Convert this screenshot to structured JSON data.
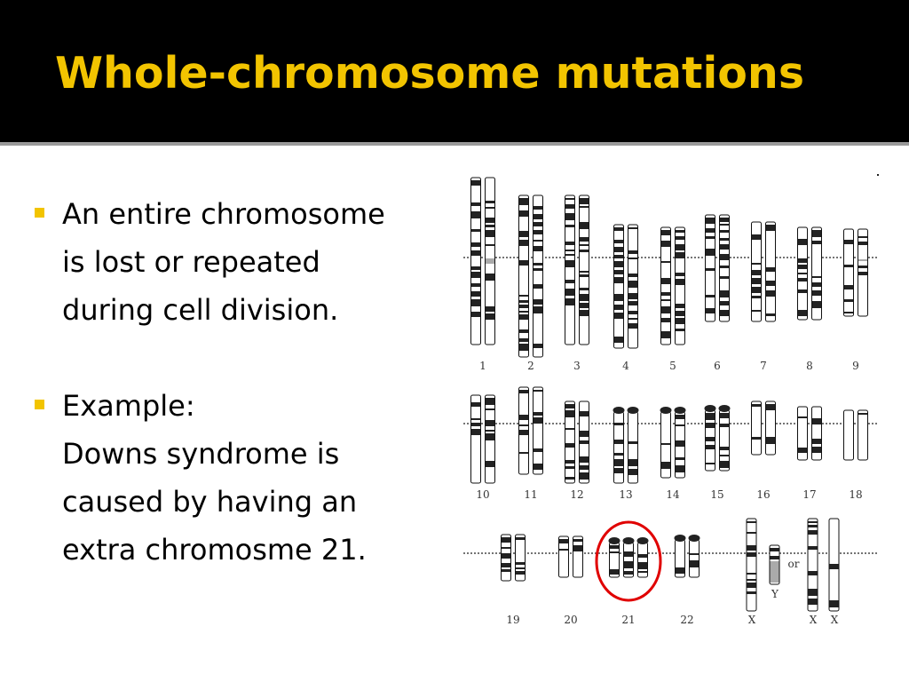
{
  "slide": {
    "title": "Whole-chromosome mutations",
    "bullets": [
      {
        "lines": [
          "An entire chromosome",
          "is lost or repeated",
          "during cell division."
        ]
      },
      {
        "lines": [
          "Example:",
          "Downs syndrome is",
          "caused by having an",
          "extra chromosme 21."
        ]
      }
    ]
  },
  "karyotype": {
    "row1_labels": [
      "1",
      "2",
      "3",
      "4",
      "5",
      "6",
      "7",
      "8",
      "9"
    ],
    "row2_labels": [
      "10",
      "11",
      "12",
      "13",
      "14",
      "15",
      "16",
      "17",
      "18"
    ],
    "row3_labels": [
      "19",
      "20",
      "21",
      "22",
      "X",
      "X",
      "X",
      "Y"
    ],
    "or_label": "or",
    "highlight": {
      "chromosome": "21",
      "color": "#e00000"
    }
  },
  "colors": {
    "title_bar": "#000000",
    "title_text": "#f2c400",
    "bullet_marker": "#f2c400",
    "band_dark": "#222222",
    "band_gray": "#aaaaaa"
  }
}
